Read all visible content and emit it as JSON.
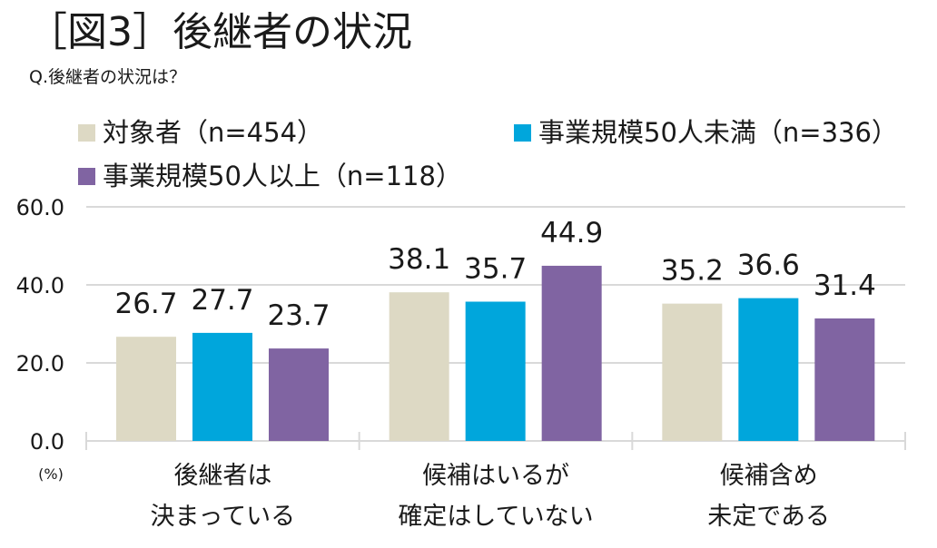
{
  "title": "［図3］後継者の状況",
  "subtitle": "Q.後継者の状況は？",
  "chart_data": {
    "type": "bar",
    "title": "［図3］後継者の状況",
    "ylabel": "(%)",
    "ylim": [
      0,
      60
    ],
    "yticks": [
      "0.0",
      "20.0",
      "40.0",
      "60.0"
    ],
    "grid": true,
    "legend_position": "top",
    "categories": [
      [
        "後継者は",
        "決まっている"
      ],
      [
        "候補はいるが",
        "確定はしていない"
      ],
      [
        "候補含め",
        "未定である"
      ]
    ],
    "series": [
      {
        "name": "対象者（n=454）",
        "color": "#DDD9C4",
        "values": [
          26.7,
          38.1,
          35.2
        ]
      },
      {
        "name": "事業規模50人未満（n=336）",
        "color": "#00A6DC",
        "values": [
          27.7,
          35.7,
          36.6
        ]
      },
      {
        "name": "事業規模50人以上（n=118）",
        "color": "#8064A2",
        "values": [
          23.7,
          44.9,
          31.4
        ]
      }
    ]
  }
}
